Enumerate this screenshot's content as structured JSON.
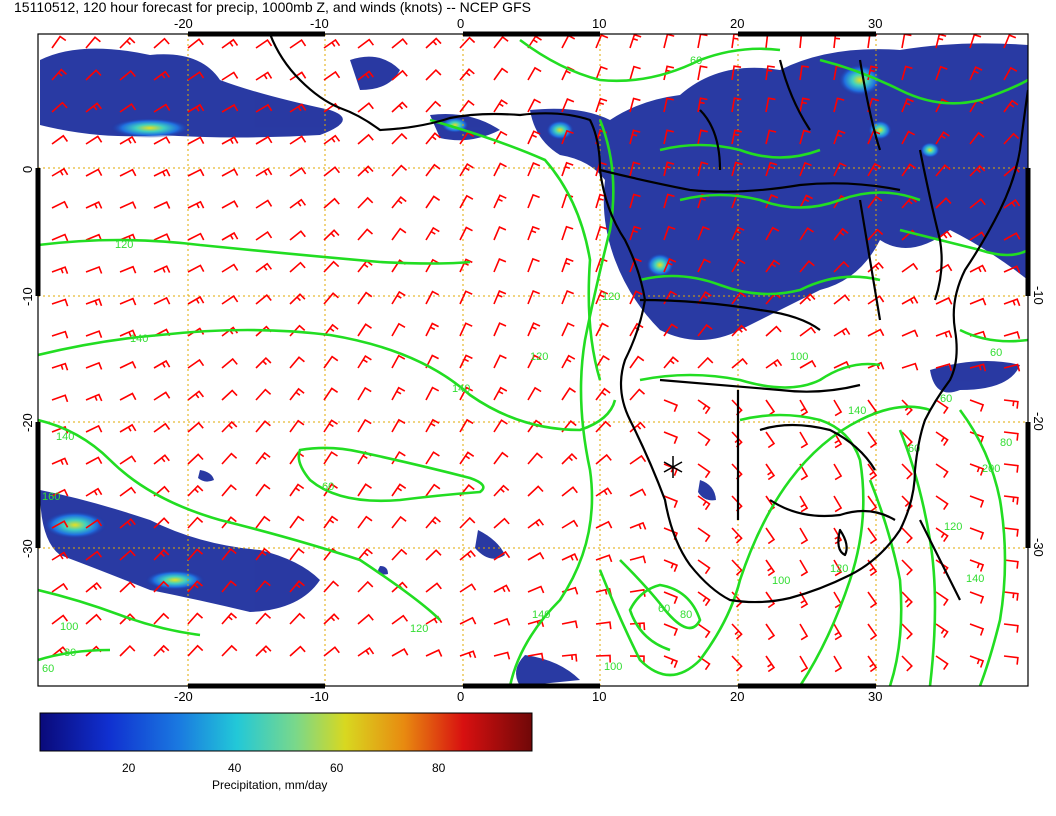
{
  "title": "15110512, 120 hour forecast for precip, 1000mb Z, and winds (knots) -- NCEP GFS",
  "map": {
    "lon_range": [
      -30,
      42
    ],
    "lat_range": [
      -40,
      10
    ],
    "lon_ticks_bottom": [
      "-20",
      "-10",
      "0",
      "10",
      "20",
      "30"
    ],
    "lon_ticks_top": [
      "-20",
      "-10",
      "0",
      "10",
      "20",
      "30"
    ],
    "lat_ticks_left": [
      "0",
      "-10",
      "-20",
      "-30"
    ],
    "lat_ticks_right": [
      "-10",
      "-20",
      "-30"
    ],
    "grid_lons": [
      -20,
      -10,
      0,
      10,
      20,
      30
    ],
    "grid_lats": [
      0,
      -10,
      -20,
      -30
    ],
    "grid_color": "#e0a800",
    "coast_color": "#000000",
    "wind_color": "#ff0000",
    "contour_color": "#22dd22",
    "precip_color_deep": "#1e2f9e",
    "contour_labels": [
      "120",
      "140",
      "140",
      "120",
      "140",
      "60",
      "60",
      "160",
      "100",
      "120",
      "80",
      "60",
      "140",
      "120",
      "100",
      "80",
      "120",
      "100",
      "140",
      "60",
      "60",
      "80",
      "200",
      "120",
      "140",
      "100",
      "60",
      "60"
    ]
  },
  "colorbar": {
    "tick_labels": [
      "20",
      "40",
      "60",
      "80"
    ],
    "label": "Precipitation, mm/day",
    "stops": [
      "#0a0a7a",
      "#1030d0",
      "#1a78e0",
      "#22c8d8",
      "#7ad88a",
      "#d8d820",
      "#e88a10",
      "#d81010",
      "#700808"
    ]
  }
}
